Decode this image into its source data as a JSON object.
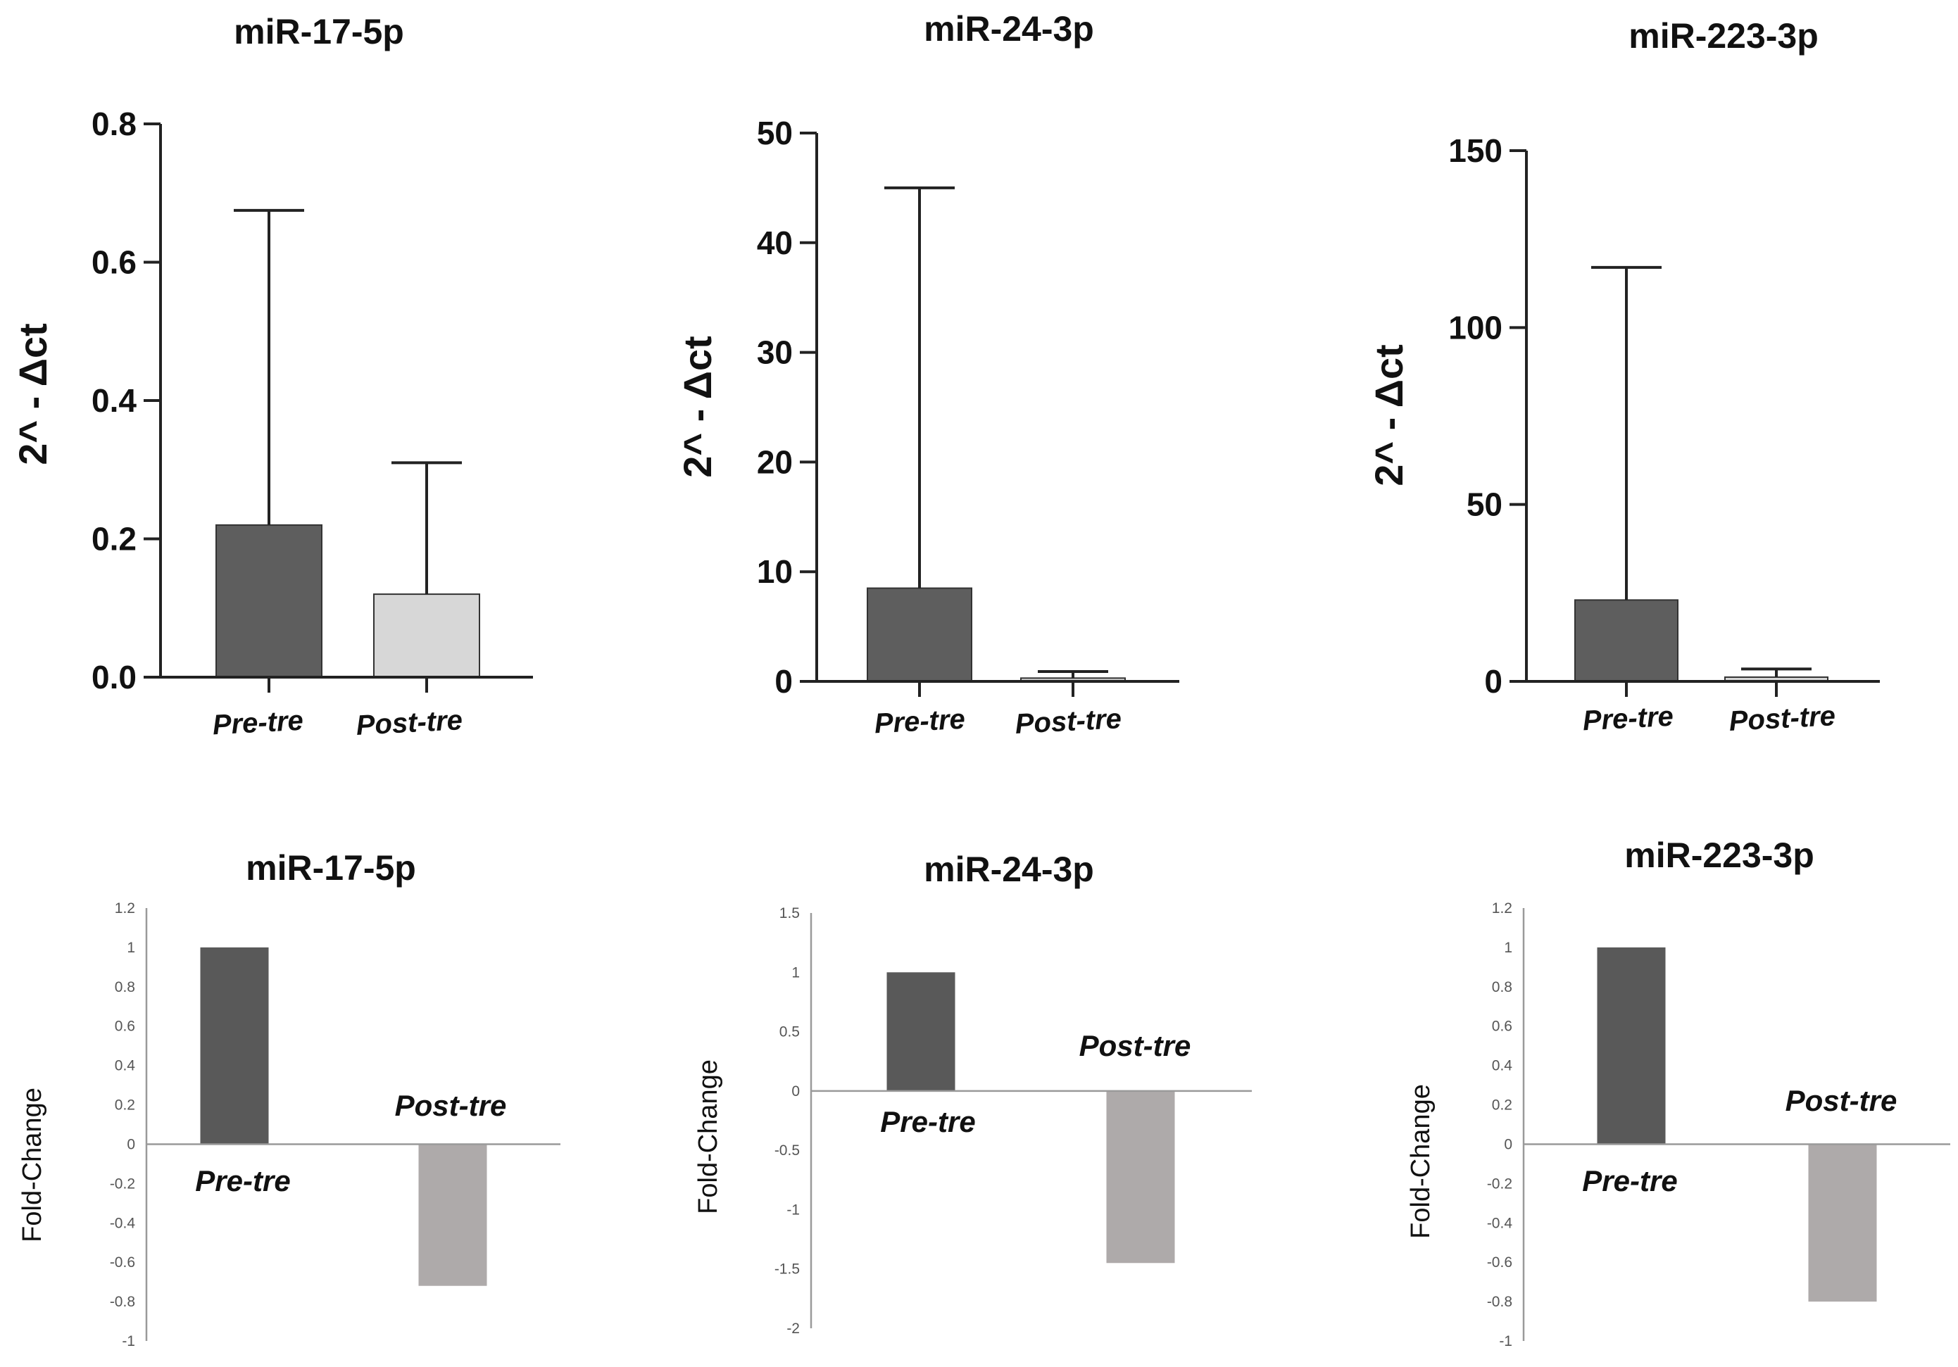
{
  "chart_data": [
    {
      "type": "bar",
      "title": "miR-17-5p",
      "ylabel": "2^ - Δct",
      "xlabel": "",
      "categories": [
        "Pre-tre",
        "Post-tre"
      ],
      "values": [
        0.22,
        0.12
      ],
      "error_upper": [
        0.675,
        0.31
      ],
      "ylim": [
        0,
        0.8
      ],
      "ticks": [
        "0.0",
        "0.2",
        "0.4",
        "0.6",
        "0.8"
      ],
      "tick_values": [
        0,
        0.2,
        0.4,
        0.6,
        0.8
      ],
      "colors": [
        "#5e5e5e",
        "#d7d7d7"
      ],
      "grid": false
    },
    {
      "type": "bar",
      "title": "miR-24-3p",
      "ylabel": "2^ - Δct",
      "xlabel": "",
      "categories": [
        "Pre-tre",
        "Post-tre"
      ],
      "values": [
        8.5,
        0.3
      ],
      "error_upper": [
        45,
        0.9
      ],
      "ylim": [
        0,
        50
      ],
      "ticks": [
        "0",
        "10",
        "20",
        "30",
        "40",
        "50"
      ],
      "tick_values": [
        0,
        10,
        20,
        30,
        40,
        50
      ],
      "colors": [
        "#5e5e5e",
        "#d7d7d7"
      ],
      "grid": false
    },
    {
      "type": "bar",
      "title": "miR-223-3p",
      "ylabel": "2^ - Δct",
      "xlabel": "",
      "categories": [
        "Pre-tre",
        "Post-tre"
      ],
      "values": [
        23,
        1.2
      ],
      "error_upper": [
        117,
        3.5
      ],
      "ylim": [
        0,
        150
      ],
      "ticks": [
        "0",
        "50",
        "100",
        "150"
      ],
      "tick_values": [
        0,
        50,
        100,
        150
      ],
      "colors": [
        "#5e5e5e",
        "#d7d7d7"
      ],
      "grid": false
    },
    {
      "type": "bar",
      "title": "miR-17-5p",
      "ylabel": "Fold-Change",
      "xlabel": "",
      "categories": [
        "Pre-tre",
        "Post-tre"
      ],
      "values": [
        1.0,
        -0.72
      ],
      "ylim": [
        -1,
        1.2
      ],
      "ticks": [
        "1.2",
        "1",
        "0.8",
        "0.6",
        "0.4",
        "0.2",
        "0",
        "-0.2",
        "-0.4",
        "-0.6",
        "-0.8",
        "-1"
      ],
      "tick_values": [
        1.2,
        1,
        0.8,
        0.6,
        0.4,
        0.2,
        0,
        -0.2,
        -0.4,
        -0.6,
        -0.8,
        -1
      ],
      "colors": [
        "#595959",
        "#aeaaaa"
      ],
      "grid": false
    },
    {
      "type": "bar",
      "title": "miR-24-3p",
      "ylabel": "Fold-Change",
      "xlabel": "",
      "categories": [
        "Pre-tre",
        "Post-tre"
      ],
      "values": [
        1.0,
        -1.45
      ],
      "ylim": [
        -2,
        1.5
      ],
      "ticks": [
        "1.5",
        "1",
        "0.5",
        "0",
        "-0.5",
        "-1",
        "-1.5",
        "-2"
      ],
      "tick_values": [
        1.5,
        1,
        0.5,
        0,
        -0.5,
        -1,
        -1.5,
        -2
      ],
      "colors": [
        "#595959",
        "#aeaaaa"
      ],
      "grid": false
    },
    {
      "type": "bar",
      "title": "miR-223-3p",
      "ylabel": "Fold-Change",
      "xlabel": "",
      "categories": [
        "Pre-tre",
        "Post-tre"
      ],
      "values": [
        1.0,
        -0.8
      ],
      "ylim": [
        -1,
        1.2
      ],
      "ticks": [
        "1.2",
        "1",
        "0.8",
        "0.6",
        "0.4",
        "0.2",
        "0",
        "-0.2",
        "-0.4",
        "-0.6",
        "-0.8",
        "-1"
      ],
      "tick_values": [
        1.2,
        1,
        0.8,
        0.6,
        0.4,
        0.2,
        0,
        -0.2,
        -0.4,
        -0.6,
        -0.8,
        -1
      ],
      "colors": [
        "#595959",
        "#aeaaaa"
      ],
      "grid": false
    }
  ]
}
